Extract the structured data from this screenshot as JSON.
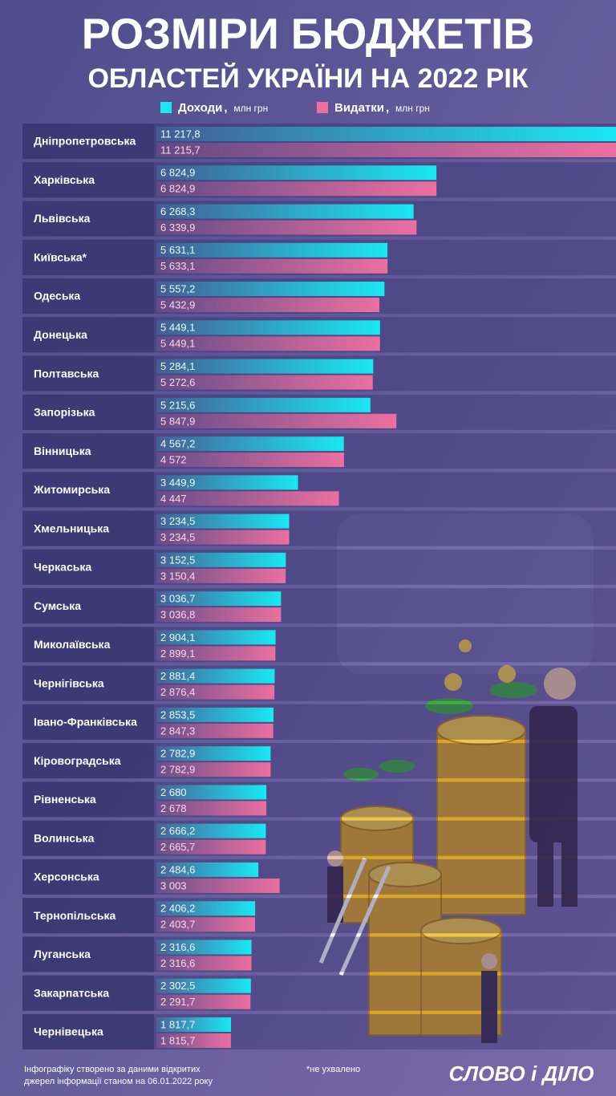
{
  "chart_data": {
    "type": "grouped-hbar",
    "title": "РОЗМІРИ БЮДЖЕТІВ",
    "subtitle": "ОБЛАСТЕЙ УКРАЇНИ НА 2022 РІК",
    "unit": "млн грн",
    "categories": [
      "Дніпропетровська",
      "Харківська",
      "Львівська",
      "Київська*",
      "Одеська",
      "Донецька",
      "Полтавська",
      "Запорізька",
      "Вінницька",
      "Житомирська",
      "Хмельницька",
      "Черкаська",
      "Сумська",
      "Миколаївська",
      "Чернігівська",
      "Івано-Франківська",
      "Кіровоградська",
      "Рівненська",
      "Волинська",
      "Херсонська",
      "Тернопільська",
      "Луганська",
      "Закарпатська",
      "Чернівецька"
    ],
    "series": [
      {
        "name": "Доходи",
        "color": "#19e8f2",
        "values": [
          11217.8,
          6824.9,
          6268.3,
          5631.1,
          5557.2,
          5449.1,
          5284.1,
          5215.6,
          4567.2,
          3449.9,
          3234.5,
          3152.5,
          3036.7,
          2904.1,
          2881.4,
          2853.5,
          2782.9,
          2680,
          2666.2,
          2484.6,
          2406.2,
          2316.6,
          2302.5,
          1817.7
        ],
        "value_labels": [
          "11 217,8",
          "6 824,9",
          "6 268,3",
          "5 631,1",
          "5 557,2",
          "5 449,1",
          "5 284,1",
          "5 215,6",
          "4 567,2",
          "3 449,9",
          "3 234,5",
          "3 152,5",
          "3 036,7",
          "2 904,1",
          "2 881,4",
          "2 853,5",
          "2 782,9",
          "2 680",
          "2 666,2",
          "2 484,6",
          "2 406,2",
          "2 316,6",
          "2 302,5",
          "1 817,7"
        ]
      },
      {
        "name": "Видатки",
        "color": "#ec6fa0",
        "values": [
          11215.7,
          6824.9,
          6339.9,
          5633.1,
          5432.9,
          5449.1,
          5272.6,
          5847.9,
          4572,
          4447,
          3234.5,
          3150.4,
          3036.8,
          2899.1,
          2876.4,
          2847.3,
          2782.9,
          2678,
          2665.7,
          3003,
          2403.7,
          2316.6,
          2291.7,
          1815.7
        ],
        "value_labels": [
          "11 215,7",
          "6 824,9",
          "6 339,9",
          "5 633,1",
          "5 432,9",
          "5 449,1",
          "5 272,6",
          "5 847,9",
          "4 572",
          "4 447",
          "3 234,5",
          "3 150,4",
          "3 036,8",
          "2 899,1",
          "2 876,4",
          "2 847,3",
          "2 782,9",
          "2 678",
          "2 665,7",
          "3 003",
          "2 403,7",
          "2 316,6",
          "2 291,7",
          "1 815,7"
        ]
      }
    ],
    "xlim": [
      0,
      11200
    ],
    "source": [
      "Інфографіку створено за даними відкритих",
      "джерел інформації станом на 06.01.2022 року"
    ],
    "footnote": "*не ухвалено",
    "logo": "СЛОВО і ДІЛО"
  }
}
